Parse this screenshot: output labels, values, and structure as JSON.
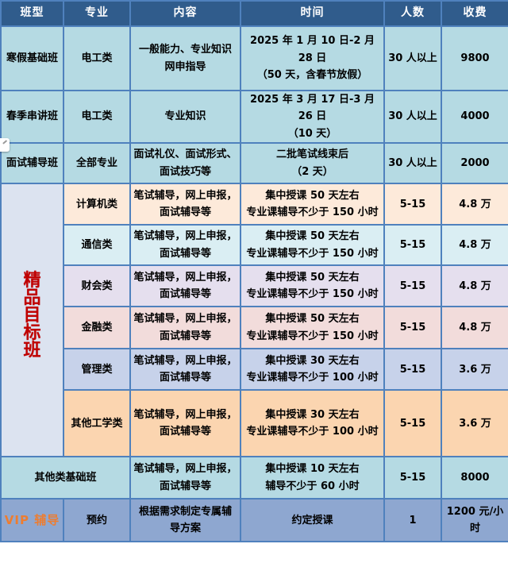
{
  "table": {
    "header": [
      "班型",
      "专业",
      "内容",
      "时间",
      "人数",
      "收费"
    ],
    "rows": [
      {
        "cells": [
          "寒假基础班",
          "电工类",
          "一般能力、专业知识\n网申指导",
          "2025 年 1 月 10 日-2 月 28 日\n（50 天，含春节放假）",
          "30 人以上",
          "9800"
        ]
      },
      {
        "cells": [
          "春季串讲班",
          "电工类",
          "专业知识",
          "2025 年 3 月 17 日-3 月 26 日\n（10 天）",
          "30 人以上",
          "4000"
        ]
      },
      {
        "cells": [
          "面试辅导班",
          "全部专业",
          "面试礼仪、面试形式、\n面试技巧等",
          "二批笔试线束后\n（2 天）",
          "30 人以上",
          "2000"
        ]
      },
      {
        "cells": [
          "计算机类",
          "笔试辅导，网上申报，\n面试辅导等",
          "集中授课 50 天左右\n专业课辅导不少于 150 小时",
          "5-15",
          "4.8 万"
        ]
      },
      {
        "cells": [
          "通信类",
          "笔试辅导，网上申报，\n面试辅导等",
          "集中授课 50 天左右\n专业课辅导不少于 150 小时",
          "5-15",
          "4.8 万"
        ]
      },
      {
        "cells": [
          "财会类",
          "笔试辅导，网上申报，\n面试辅导等",
          "集中授课 50 天左右\n专业课辅导不少于 150 小时",
          "5-15",
          "4.8 万"
        ]
      },
      {
        "cells": [
          "金融类",
          "笔试辅导，网上申报，\n面试辅导等",
          "集中授课 50 天左右\n专业课辅导不少于 150 小时",
          "5-15",
          "4.8 万"
        ]
      },
      {
        "cells": [
          "管理类",
          "笔试辅导，网上申报，\n面试辅导等",
          "集中授课 30 天左右\n专业课辅导不少于 100 小时",
          "5-15",
          "3.6 万"
        ]
      },
      {
        "cells": [
          "其他工学类",
          "笔试辅导，网上申报，\n面试辅导等",
          "集中授课 30 天左右\n专业课辅导不少于 100 小时",
          "5-15",
          "3.6 万"
        ]
      },
      {
        "cells": [
          "其他类基础班",
          "笔试辅导，网上申报，\n面试辅导等",
          "集中授课 10 天左右\n辅导不少于 60 小时",
          "5-15",
          "8000"
        ]
      },
      {
        "cells": [
          "VIP 辅导",
          "预约",
          "根据需求制定专属辅\n导方案",
          "约定授课",
          "1",
          "1200 元/小时"
        ]
      }
    ]
  },
  "group": {
    "label": "精品目标班",
    "chars": [
      "精",
      "品",
      "目",
      "标",
      "班"
    ]
  },
  "colors": {
    "header_bg": "#305c8c",
    "grid_border": "#4f81bd",
    "row_cyan": "#b5dae3",
    "row_peach": "#fdeada",
    "row_light_cyan": "#daeef3",
    "row_lavender": "#e5dfee",
    "row_pink": "#f2dcdb",
    "row_periwinkle": "#c7d2ea",
    "row_orange": "#fbd5b0",
    "group_cell_bg": "#dce3f0",
    "vip_row_bg": "#8ea7d0",
    "group_text_red": "#c00000",
    "vip_label_orange": "#ed7d31"
  }
}
